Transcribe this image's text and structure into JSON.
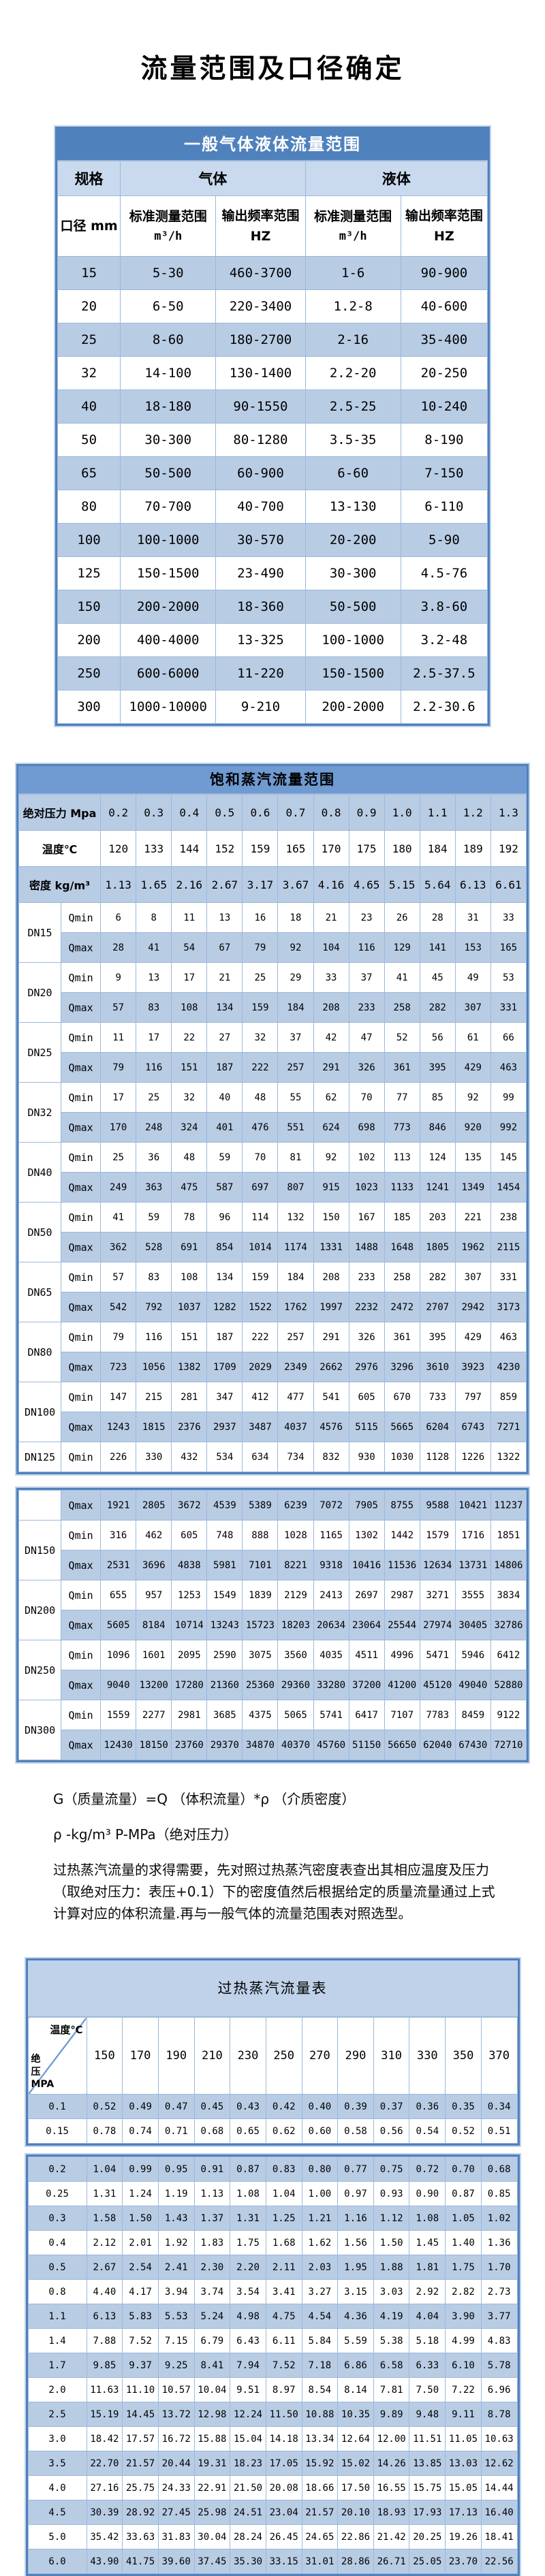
{
  "page_title": "流量范围及口径确定",
  "table1": {
    "title": "一般气体液体流量范围",
    "col_spec": "规格",
    "col_gas": "气体",
    "col_liquid": "液体",
    "col_diameter": "口径 mm",
    "col_std_range": "标准测量范围",
    "unit_flow": "m³/h",
    "col_freq_range": "输出频率范围 HZ",
    "rows": [
      {
        "dn": "15",
        "gas_range": "5-30",
        "gas_freq": "460-3700",
        "liq_range": "1-6",
        "liq_freq": "90-900"
      },
      {
        "dn": "20",
        "gas_range": "6-50",
        "gas_freq": "220-3400",
        "liq_range": "1.2-8",
        "liq_freq": "40-600"
      },
      {
        "dn": "25",
        "gas_range": "8-60",
        "gas_freq": "180-2700",
        "liq_range": "2-16",
        "liq_freq": "35-400"
      },
      {
        "dn": "32",
        "gas_range": "14-100",
        "gas_freq": "130-1400",
        "liq_range": "2.2-20",
        "liq_freq": "20-250"
      },
      {
        "dn": "40",
        "gas_range": "18-180",
        "gas_freq": "90-1550",
        "liq_range": "2.5-25",
        "liq_freq": "10-240"
      },
      {
        "dn": "50",
        "gas_range": "30-300",
        "gas_freq": "80-1280",
        "liq_range": "3.5-35",
        "liq_freq": "8-190"
      },
      {
        "dn": "65",
        "gas_range": "50-500",
        "gas_freq": "60-900",
        "liq_range": "6-60",
        "liq_freq": "7-150"
      },
      {
        "dn": "80",
        "gas_range": "70-700",
        "gas_freq": "40-700",
        "liq_range": "13-130",
        "liq_freq": "6-110"
      },
      {
        "dn": "100",
        "gas_range": "100-1000",
        "gas_freq": "30-570",
        "liq_range": "20-200",
        "liq_freq": "5-90"
      },
      {
        "dn": "125",
        "gas_range": "150-1500",
        "gas_freq": "23-490",
        "liq_range": "30-300",
        "liq_freq": "4.5-76"
      },
      {
        "dn": "150",
        "gas_range": "200-2000",
        "gas_freq": "18-360",
        "liq_range": "50-500",
        "liq_freq": "3.8-60"
      },
      {
        "dn": "200",
        "gas_range": "400-4000",
        "gas_freq": "13-325",
        "liq_range": "100-1000",
        "liq_freq": "3.2-48"
      },
      {
        "dn": "250",
        "gas_range": "600-6000",
        "gas_freq": "11-220",
        "liq_range": "150-1500",
        "liq_freq": "2.5-37.5"
      },
      {
        "dn": "300",
        "gas_range": "1000-10000",
        "gas_freq": "9-210",
        "liq_range": "200-2000",
        "liq_freq": "2.2-30.6"
      }
    ]
  },
  "table2": {
    "title": "饱和蒸汽流量范围",
    "header_rows": [
      {
        "label": "绝对压力 Mpa",
        "shaded": true,
        "values": [
          "0.2",
          "0.3",
          "0.4",
          "0.5",
          "0.6",
          "0.7",
          "0.8",
          "0.9",
          "1.0",
          "1.1",
          "1.2",
          "1.3"
        ]
      },
      {
        "label": "温度℃",
        "shaded": false,
        "values": [
          "120",
          "133",
          "144",
          "152",
          "159",
          "165",
          "170",
          "175",
          "180",
          "184",
          "189",
          "192"
        ]
      },
      {
        "label": "密度 kg/m³",
        "shaded": true,
        "values": [
          "1.13",
          "1.65",
          "2.16",
          "2.67",
          "3.17",
          "3.67",
          "4.16",
          "4.65",
          "5.15",
          "5.64",
          "6.13",
          "6.61"
        ]
      }
    ],
    "block1_rows": [
      {
        "dn": "DN15",
        "span": 2,
        "q": "Qmin",
        "shaded": false,
        "values": [
          "6",
          "8",
          "11",
          "13",
          "16",
          "18",
          "21",
          "23",
          "26",
          "28",
          "31",
          "33"
        ]
      },
      {
        "q": "Qmax",
        "shaded": true,
        "values": [
          "28",
          "41",
          "54",
          "67",
          "79",
          "92",
          "104",
          "116",
          "129",
          "141",
          "153",
          "165"
        ]
      },
      {
        "dn": "DN20",
        "span": 2,
        "q": "Qmin",
        "shaded": false,
        "values": [
          "9",
          "13",
          "17",
          "21",
          "25",
          "29",
          "33",
          "37",
          "41",
          "45",
          "49",
          "53"
        ]
      },
      {
        "q": "Qmax",
        "shaded": true,
        "values": [
          "57",
          "83",
          "108",
          "134",
          "159",
          "184",
          "208",
          "233",
          "258",
          "282",
          "307",
          "331"
        ]
      },
      {
        "dn": "DN25",
        "span": 2,
        "q": "Qmin",
        "shaded": false,
        "values": [
          "11",
          "17",
          "22",
          "27",
          "32",
          "37",
          "42",
          "47",
          "52",
          "56",
          "61",
          "66"
        ]
      },
      {
        "q": "Qmax",
        "shaded": true,
        "values": [
          "79",
          "116",
          "151",
          "187",
          "222",
          "257",
          "291",
          "326",
          "361",
          "395",
          "429",
          "463"
        ]
      },
      {
        "dn": "DN32",
        "span": 2,
        "q": "Qmin",
        "shaded": false,
        "values": [
          "17",
          "25",
          "32",
          "40",
          "48",
          "55",
          "62",
          "70",
          "77",
          "85",
          "92",
          "99"
        ]
      },
      {
        "q": "Qmax",
        "shaded": true,
        "values": [
          "170",
          "248",
          "324",
          "401",
          "476",
          "551",
          "624",
          "698",
          "773",
          "846",
          "920",
          "992"
        ]
      },
      {
        "dn": "DN40",
        "span": 2,
        "q": "Qmin",
        "shaded": false,
        "values": [
          "25",
          "36",
          "48",
          "59",
          "70",
          "81",
          "92",
          "102",
          "113",
          "124",
          "135",
          "145"
        ]
      },
      {
        "q": "Qmax",
        "shaded": true,
        "values": [
          "249",
          "363",
          "475",
          "587",
          "697",
          "807",
          "915",
          "1023",
          "1133",
          "1241",
          "1349",
          "1454"
        ]
      },
      {
        "dn": "DN50",
        "span": 2,
        "q": "Qmin",
        "shaded": false,
        "values": [
          "41",
          "59",
          "78",
          "96",
          "114",
          "132",
          "150",
          "167",
          "185",
          "203",
          "221",
          "238"
        ]
      },
      {
        "q": "Qmax",
        "shaded": true,
        "values": [
          "362",
          "528",
          "691",
          "854",
          "1014",
          "1174",
          "1331",
          "1488",
          "1648",
          "1805",
          "1962",
          "2115"
        ]
      },
      {
        "dn": "DN65",
        "span": 2,
        "q": "Qmin",
        "shaded": false,
        "values": [
          "57",
          "83",
          "108",
          "134",
          "159",
          "184",
          "208",
          "233",
          "258",
          "282",
          "307",
          "331"
        ]
      },
      {
        "q": "Qmax",
        "shaded": true,
        "values": [
          "542",
          "792",
          "1037",
          "1282",
          "1522",
          "1762",
          "1997",
          "2232",
          "2472",
          "2707",
          "2942",
          "3173"
        ]
      },
      {
        "dn": "DN80",
        "span": 2,
        "q": "Qmin",
        "shaded": false,
        "values": [
          "79",
          "116",
          "151",
          "187",
          "222",
          "257",
          "291",
          "326",
          "361",
          "395",
          "429",
          "463"
        ]
      },
      {
        "q": "Qmax",
        "shaded": true,
        "values": [
          "723",
          "1056",
          "1382",
          "1709",
          "2029",
          "2349",
          "2662",
          "2976",
          "3296",
          "3610",
          "3923",
          "4230"
        ]
      },
      {
        "dn": "DN100",
        "span": 2,
        "q": "Qmin",
        "shaded": false,
        "values": [
          "147",
          "215",
          "281",
          "347",
          "412",
          "477",
          "541",
          "605",
          "670",
          "733",
          "797",
          "859"
        ]
      },
      {
        "q": "Qmax",
        "shaded": true,
        "values": [
          "1243",
          "1815",
          "2376",
          "2937",
          "3487",
          "4037",
          "4576",
          "5115",
          "5665",
          "6204",
          "6743",
          "7271"
        ]
      },
      {
        "dn": "DN125",
        "span": 1,
        "q": "Qmin",
        "shaded": false,
        "values": [
          "226",
          "330",
          "432",
          "534",
          "634",
          "734",
          "832",
          "930",
          "1030",
          "1128",
          "1226",
          "1322"
        ]
      }
    ],
    "block2_rows": [
      {
        "dn": "",
        "span": 1,
        "q": "Qmax",
        "shaded": true,
        "values": [
          "1921",
          "2805",
          "3672",
          "4539",
          "5389",
          "6239",
          "7072",
          "7905",
          "8755",
          "9588",
          "10421",
          "11237"
        ]
      },
      {
        "dn": "DN150",
        "span": 2,
        "q": "Qmin",
        "shaded": false,
        "values": [
          "316",
          "462",
          "605",
          "748",
          "888",
          "1028",
          "1165",
          "1302",
          "1442",
          "1579",
          "1716",
          "1851"
        ]
      },
      {
        "q": "Qmax",
        "shaded": true,
        "values": [
          "2531",
          "3696",
          "4838",
          "5981",
          "7101",
          "8221",
          "9318",
          "10416",
          "11536",
          "12634",
          "13731",
          "14806"
        ]
      },
      {
        "dn": "DN200",
        "span": 2,
        "q": "Qmin",
        "shaded": false,
        "values": [
          "655",
          "957",
          "1253",
          "1549",
          "1839",
          "2129",
          "2413",
          "2697",
          "2987",
          "3271",
          "3555",
          "3834"
        ]
      },
      {
        "q": "Qmax",
        "shaded": true,
        "values": [
          "5605",
          "8184",
          "10714",
          "13243",
          "15723",
          "18203",
          "20634",
          "23064",
          "25544",
          "27974",
          "30405",
          "32786"
        ]
      },
      {
        "dn": "DN250",
        "span": 2,
        "q": "Qmin",
        "shaded": false,
        "values": [
          "1096",
          "1601",
          "2095",
          "2590",
          "3075",
          "3560",
          "4035",
          "4511",
          "4996",
          "5471",
          "5946",
          "6412"
        ]
      },
      {
        "q": "Qmax",
        "shaded": true,
        "values": [
          "9040",
          "13200",
          "17280",
          "21360",
          "25360",
          "29360",
          "33280",
          "37200",
          "41200",
          "45120",
          "49040",
          "52880"
        ]
      },
      {
        "dn": "DN300",
        "span": 2,
        "q": "Qmin",
        "shaded": false,
        "values": [
          "1559",
          "2277",
          "2981",
          "3685",
          "4375",
          "5065",
          "5741",
          "6417",
          "7107",
          "7783",
          "8459",
          "9122"
        ]
      },
      {
        "q": "Qmax",
        "shaded": true,
        "values": [
          "12430",
          "18150",
          "23760",
          "29370",
          "34870",
          "40370",
          "45760",
          "51150",
          "56650",
          "62040",
          "67430",
          "72710"
        ]
      }
    ]
  },
  "notes": {
    "formula": "G（质量流量）=Q （体积流量）*ρ （介质密度）",
    "density": "ρ -kg/m³ P-MPa（绝对压力）",
    "instruction": "过热蒸汽流量的求得需要，先对照过热蒸汽密度表查出其相应温度及压力（取绝对压力：表压+0.1）下的密度值然后根据给定的质量流量通过上式计算对应的体积流量.再与一般气体的流量范围表对照选型。"
  },
  "table3": {
    "title": "过热蒸汽流量表",
    "corner_top": "温度℃",
    "corner_bottom": "绝\n压\nMPA",
    "temps": [
      "150",
      "170",
      "190",
      "210",
      "230",
      "250",
      "270",
      "290",
      "310",
      "330",
      "350",
      "370"
    ],
    "block1_rows": [
      {
        "pressure": "0.1",
        "shaded": true,
        "values": [
          "0.52",
          "0.49",
          "0.47",
          "0.45",
          "0.43",
          "0.42",
          "0.40",
          "0.39",
          "0.37",
          "0.36",
          "0.35",
          "0.34"
        ]
      },
      {
        "pressure": "0.15",
        "shaded": false,
        "values": [
          "0.78",
          "0.74",
          "0.71",
          "0.68",
          "0.65",
          "0.62",
          "0.60",
          "0.58",
          "0.56",
          "0.54",
          "0.52",
          "0.51"
        ]
      }
    ],
    "block2_rows": [
      {
        "pressure": "0.2",
        "shaded": true,
        "values": [
          "1.04",
          "0.99",
          "0.95",
          "0.91",
          "0.87",
          "0.83",
          "0.80",
          "0.77",
          "0.75",
          "0.72",
          "0.70",
          "0.68"
        ]
      },
      {
        "pressure": "0.25",
        "shaded": false,
        "values": [
          "1.31",
          "1.24",
          "1.19",
          "1.13",
          "1.08",
          "1.04",
          "1.00",
          "0.97",
          "0.93",
          "0.90",
          "0.87",
          "0.85"
        ]
      },
      {
        "pressure": "0.3",
        "shaded": true,
        "values": [
          "1.58",
          "1.50",
          "1.43",
          "1.37",
          "1.31",
          "1.25",
          "1.21",
          "1.16",
          "1.12",
          "1.08",
          "1.05",
          "1.02"
        ]
      },
      {
        "pressure": "0.4",
        "shaded": false,
        "values": [
          "2.12",
          "2.01",
          "1.92",
          "1.83",
          "1.75",
          "1.68",
          "1.62",
          "1.56",
          "1.50",
          "1.45",
          "1.40",
          "1.36"
        ]
      },
      {
        "pressure": "0.5",
        "shaded": true,
        "values": [
          "2.67",
          "2.54",
          "2.41",
          "2.30",
          "2.20",
          "2.11",
          "2.03",
          "1.95",
          "1.88",
          "1.81",
          "1.75",
          "1.70"
        ]
      },
      {
        "pressure": "0.8",
        "shaded": false,
        "values": [
          "4.40",
          "4.17",
          "3.94",
          "3.74",
          "3.54",
          "3.41",
          "3.27",
          "3.15",
          "3.03",
          "2.92",
          "2.82",
          "2.73"
        ]
      },
      {
        "pressure": "1.1",
        "shaded": true,
        "values": [
          "6.13",
          "5.83",
          "5.53",
          "5.24",
          "4.98",
          "4.75",
          "4.54",
          "4.36",
          "4.19",
          "4.04",
          "3.90",
          "3.77"
        ]
      },
      {
        "pressure": "1.4",
        "shaded": false,
        "values": [
          "7.88",
          "7.52",
          "7.15",
          "6.79",
          "6.43",
          "6.11",
          "5.84",
          "5.59",
          "5.38",
          "5.18",
          "4.99",
          "4.83"
        ]
      },
      {
        "pressure": "1.7",
        "shaded": true,
        "values": [
          "9.85",
          "9.37",
          "9.25",
          "8.41",
          "7.94",
          "7.52",
          "7.18",
          "6.86",
          "6.58",
          "6.33",
          "6.10",
          "5.78"
        ]
      },
      {
        "pressure": "2.0",
        "shaded": false,
        "values": [
          "11.63",
          "11.10",
          "10.57",
          "10.04",
          "9.51",
          "8.97",
          "8.54",
          "8.14",
          "7.81",
          "7.50",
          "7.22",
          "6.96"
        ]
      },
      {
        "pressure": "2.5",
        "shaded": true,
        "values": [
          "15.19",
          "14.45",
          "13.72",
          "12.98",
          "12.24",
          "11.50",
          "10.88",
          "10.35",
          "9.89",
          "9.48",
          "9.11",
          "8.78"
        ]
      },
      {
        "pressure": "3.0",
        "shaded": false,
        "values": [
          "18.42",
          "17.57",
          "16.72",
          "15.88",
          "15.04",
          "14.18",
          "13.34",
          "12.64",
          "12.00",
          "11.51",
          "11.05",
          "10.63"
        ]
      },
      {
        "pressure": "3.5",
        "shaded": true,
        "values": [
          "22.70",
          "21.57",
          "20.44",
          "19.31",
          "18.23",
          "17.05",
          "15.92",
          "15.02",
          "14.26",
          "13.85",
          "13.03",
          "12.62"
        ]
      },
      {
        "pressure": "4.0",
        "shaded": false,
        "values": [
          "27.16",
          "25.75",
          "24.33",
          "22.91",
          "21.50",
          "20.08",
          "18.66",
          "17.50",
          "16.55",
          "15.75",
          "15.05",
          "14.44"
        ]
      },
      {
        "pressure": "4.5",
        "shaded": true,
        "values": [
          "30.39",
          "28.92",
          "27.45",
          "25.98",
          "24.51",
          "23.04",
          "21.57",
          "20.10",
          "18.93",
          "17.93",
          "17.13",
          "16.40"
        ]
      },
      {
        "pressure": "5.0",
        "shaded": false,
        "values": [
          "35.42",
          "33.63",
          "31.83",
          "30.04",
          "28.24",
          "26.45",
          "24.65",
          "22.86",
          "21.42",
          "20.25",
          "19.26",
          "18.41"
        ]
      },
      {
        "pressure": "6.0",
        "shaded": true,
        "values": [
          "43.90",
          "41.75",
          "39.60",
          "37.45",
          "35.30",
          "33.15",
          "31.01",
          "28.86",
          "26.71",
          "25.05",
          "23.70",
          "22.56"
        ]
      }
    ]
  }
}
